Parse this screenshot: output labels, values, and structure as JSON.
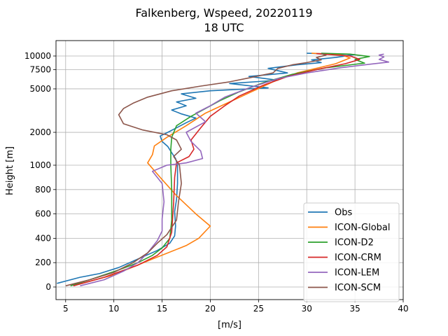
{
  "chart_data": {
    "type": "line",
    "title_line1": "Falkenberg, Wspeed, 20220119",
    "title_line2": "18 UTC",
    "xlabel": "[m/s]",
    "ylabel": "Height [m]",
    "xlim": [
      4,
      40
    ],
    "x_ticks": [
      5,
      10,
      15,
      20,
      25,
      30,
      35,
      40
    ],
    "y_tick_labels": [
      "0",
      "200",
      "400",
      "600",
      "800",
      "1000",
      "2000",
      "5000",
      "7500",
      "10000"
    ],
    "y_ticks": [
      0,
      200,
      400,
      600,
      800,
      1000,
      2000,
      5000,
      7500,
      10000
    ],
    "y_scale": "piecewise: linear 0-1000 m, logarithmic above 1000 m",
    "grid": true,
    "legend_position": "lower-right",
    "series": [
      {
        "name": "Obs",
        "color": "#1f77b4",
        "points": [
          [
            4.1,
            30
          ],
          [
            6.5,
            80
          ],
          [
            8.5,
            110
          ],
          [
            10.5,
            160
          ],
          [
            12.5,
            230
          ],
          [
            14.5,
            300
          ],
          [
            15.8,
            360
          ],
          [
            16.3,
            420
          ],
          [
            16.4,
            500
          ],
          [
            16.3,
            620
          ],
          [
            16.5,
            720
          ],
          [
            16.6,
            850
          ],
          [
            16.6,
            1000
          ],
          [
            16.4,
            1150
          ],
          [
            16.0,
            1300
          ],
          [
            15.6,
            1480
          ],
          [
            15.0,
            1650
          ],
          [
            14.8,
            1850
          ],
          [
            15.6,
            2000
          ],
          [
            16.5,
            2200
          ],
          [
            17.5,
            2450
          ],
          [
            18.5,
            2700
          ],
          [
            17.0,
            2950
          ],
          [
            16.0,
            3200
          ],
          [
            17.5,
            3500
          ],
          [
            16.5,
            3800
          ],
          [
            18.5,
            4100
          ],
          [
            17.0,
            4500
          ],
          [
            20.0,
            4800
          ],
          [
            26.0,
            5100
          ],
          [
            22.0,
            5600
          ],
          [
            27.0,
            6000
          ],
          [
            24.0,
            6500
          ],
          [
            28.0,
            7000
          ],
          [
            26.0,
            7700
          ],
          [
            29.0,
            8300
          ],
          [
            31.5,
            8700
          ],
          [
            30.5,
            9200
          ],
          [
            33.0,
            9700
          ],
          [
            35.0,
            10300
          ],
          [
            30.0,
            10600
          ]
        ]
      },
      {
        "name": "ICON-Global",
        "color": "#ff7f0e",
        "points": [
          [
            6.0,
            15
          ],
          [
            10.0,
            100
          ],
          [
            14.0,
            230
          ],
          [
            17.5,
            340
          ],
          [
            18.8,
            400
          ],
          [
            20.0,
            500
          ],
          [
            18.5,
            600
          ],
          [
            16.5,
            750
          ],
          [
            14.8,
            900
          ],
          [
            13.5,
            1050
          ],
          [
            14.0,
            1250
          ],
          [
            14.2,
            1500
          ],
          [
            15.5,
            1800
          ],
          [
            17.5,
            2300
          ],
          [
            19.5,
            3000
          ],
          [
            22.0,
            3800
          ],
          [
            24.5,
            4800
          ],
          [
            26.5,
            5800
          ],
          [
            29.0,
            7000
          ],
          [
            33.0,
            8500
          ],
          [
            34.5,
            9600
          ],
          [
            33.5,
            10300
          ],
          [
            30.5,
            10600
          ]
        ]
      },
      {
        "name": "ICON-D2",
        "color": "#2ca02c",
        "points": [
          [
            5.5,
            10
          ],
          [
            7.5,
            60
          ],
          [
            10.5,
            140
          ],
          [
            12.5,
            200
          ],
          [
            14.0,
            260
          ],
          [
            15.0,
            320
          ],
          [
            15.8,
            400
          ],
          [
            16.0,
            550
          ],
          [
            16.0,
            800
          ],
          [
            15.9,
            1000
          ],
          [
            15.9,
            1400
          ],
          [
            16.0,
            1800
          ],
          [
            16.5,
            2300
          ],
          [
            18.0,
            2800
          ],
          [
            19.5,
            3300
          ],
          [
            21.0,
            3900
          ],
          [
            23.0,
            4700
          ],
          [
            25.5,
            5700
          ],
          [
            28.5,
            6800
          ],
          [
            32.0,
            7800
          ],
          [
            36.0,
            8600
          ],
          [
            35.0,
            9300
          ],
          [
            36.5,
            9900
          ],
          [
            34.5,
            10400
          ],
          [
            31.5,
            10600
          ]
        ]
      },
      {
        "name": "ICON-CRM",
        "color": "#d62728",
        "points": [
          [
            5.8,
            10
          ],
          [
            9.0,
            80
          ],
          [
            12.5,
            180
          ],
          [
            14.5,
            260
          ],
          [
            15.5,
            330
          ],
          [
            16.0,
            450
          ],
          [
            16.2,
            700
          ],
          [
            16.3,
            900
          ],
          [
            16.5,
            1050
          ],
          [
            17.8,
            1200
          ],
          [
            18.3,
            1400
          ],
          [
            18.0,
            1700
          ],
          [
            19.0,
            2200
          ],
          [
            20.0,
            2800
          ],
          [
            21.5,
            3500
          ],
          [
            23.0,
            4300
          ],
          [
            25.5,
            5400
          ],
          [
            28.0,
            6500
          ],
          [
            31.0,
            7500
          ],
          [
            34.0,
            8500
          ],
          [
            35.5,
            9300
          ],
          [
            34.5,
            10000
          ],
          [
            31.0,
            10500
          ]
        ]
      },
      {
        "name": "ICON-LEM",
        "color": "#9467bd",
        "points": [
          [
            6.5,
            10
          ],
          [
            9.0,
            60
          ],
          [
            11.0,
            130
          ],
          [
            12.5,
            200
          ],
          [
            13.5,
            280
          ],
          [
            14.5,
            380
          ],
          [
            15.0,
            460
          ],
          [
            15.0,
            560
          ],
          [
            15.2,
            700
          ],
          [
            15.0,
            850
          ],
          [
            14.0,
            950
          ],
          [
            15.5,
            1000
          ],
          [
            17.5,
            1050
          ],
          [
            19.2,
            1150
          ],
          [
            19.0,
            1350
          ],
          [
            18.0,
            1650
          ],
          [
            17.5,
            2000
          ],
          [
            19.5,
            2500
          ],
          [
            18.5,
            3000
          ],
          [
            20.0,
            3500
          ],
          [
            21.5,
            4200
          ],
          [
            24.0,
            5100
          ],
          [
            27.0,
            6200
          ],
          [
            30.0,
            7000
          ],
          [
            33.5,
            7800
          ],
          [
            36.5,
            8400
          ],
          [
            38.5,
            8800
          ],
          [
            37.5,
            9300
          ],
          [
            38.0,
            9800
          ],
          [
            37.5,
            10200
          ],
          [
            38.0,
            10400
          ]
        ]
      },
      {
        "name": "ICON-SCM",
        "color": "#8c564b",
        "points": [
          [
            5.0,
            10
          ],
          [
            7.5,
            60
          ],
          [
            10.0,
            120
          ],
          [
            12.0,
            200
          ],
          [
            13.5,
            280
          ],
          [
            14.5,
            360
          ],
          [
            15.5,
            430
          ],
          [
            16.5,
            550
          ],
          [
            16.7,
            700
          ],
          [
            17.0,
            850
          ],
          [
            16.8,
            1000
          ],
          [
            16.2,
            1200
          ],
          [
            17.0,
            1400
          ],
          [
            16.5,
            1700
          ],
          [
            15.5,
            1900
          ],
          [
            13.0,
            2100
          ],
          [
            11.0,
            2400
          ],
          [
            10.5,
            2900
          ],
          [
            11.0,
            3300
          ],
          [
            12.0,
            3700
          ],
          [
            13.5,
            4200
          ],
          [
            16.0,
            4800
          ],
          [
            19.0,
            5300
          ],
          [
            22.0,
            5800
          ],
          [
            24.0,
            6300
          ],
          [
            26.5,
            7000
          ],
          [
            27.0,
            7700
          ],
          [
            28.5,
            8300
          ],
          [
            30.0,
            8700
          ],
          [
            31.5,
            9200
          ],
          [
            31.0,
            9700
          ],
          [
            32.0,
            10200
          ],
          [
            31.5,
            10500
          ]
        ]
      }
    ]
  }
}
